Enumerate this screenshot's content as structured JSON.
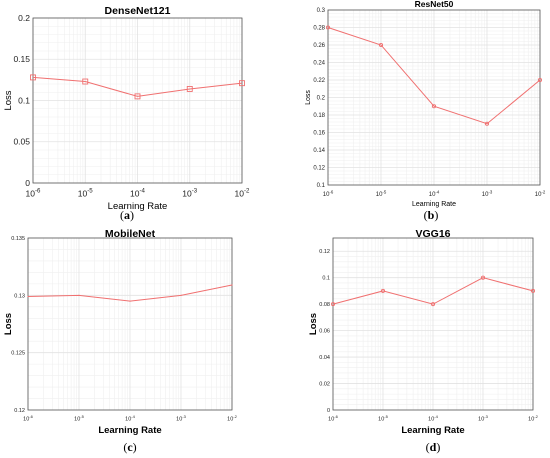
{
  "chart_data": [
    {
      "type": "line",
      "title": "DenseNet121",
      "xlabel": "Learning Rate",
      "ylabel": "Loss",
      "x_tick_labels": [
        "10-6",
        "10-5",
        "10-4",
        "10-3",
        "10-2"
      ],
      "x": [
        1e-06,
        1e-05,
        0.0001,
        0.001,
        0.01
      ],
      "xscale": "log",
      "y": [
        0.128,
        0.123,
        0.105,
        0.114,
        0.121
      ],
      "ylim": [
        0,
        0.2
      ],
      "y_ticks": [
        "0",
        "0.05",
        "0.1",
        "0.15",
        "0.2"
      ],
      "grid": true,
      "marker": "square",
      "caption": "(a)"
    },
    {
      "type": "line",
      "title": "ResNet50",
      "xlabel": "Learning Rate",
      "ylabel": "Loss",
      "x_tick_labels": [
        "10-6",
        "10-5",
        "10-4",
        "10-3",
        "10-2"
      ],
      "x": [
        1e-06,
        1e-05,
        0.0001,
        0.001,
        0.01
      ],
      "xscale": "log",
      "y": [
        0.28,
        0.26,
        0.19,
        0.17,
        0.22
      ],
      "ylim": [
        0.1,
        0.3
      ],
      "y_ticks": [
        "0.1",
        "0.12",
        "0.14",
        "0.16",
        "0.18",
        "0.2",
        "0.22",
        "0.24",
        "0.26",
        "0.28",
        "0.3"
      ],
      "grid": true,
      "marker": "circle",
      "caption": "(b)"
    },
    {
      "type": "line",
      "title": "MobileNet",
      "xlabel": "Learning Rate",
      "ylabel": "Loss",
      "x_tick_labels": [
        "10-6",
        "10-5",
        "10-4",
        "10-3",
        "10-2"
      ],
      "x": [
        1e-06,
        1e-05,
        0.0001,
        0.001,
        0.01
      ],
      "xscale": "log",
      "y": [
        0.1299,
        0.13,
        0.1295,
        0.13,
        0.1309
      ],
      "ylim": [
        0.12,
        0.135
      ],
      "y_ticks": [
        "0.12",
        "0.125",
        "0.13",
        "0.135"
      ],
      "grid": true,
      "marker": "none",
      "caption": "(c)"
    },
    {
      "type": "line",
      "title": "VGG16",
      "xlabel": "Learning Rate",
      "ylabel": "Loss",
      "x_tick_labels": [
        "10-6",
        "10-5",
        "10-4",
        "10-3",
        "10-2"
      ],
      "x": [
        1e-06,
        1e-05,
        0.0001,
        0.001,
        0.01
      ],
      "xscale": "log",
      "y": [
        0.08,
        0.09,
        0.08,
        0.1,
        0.09
      ],
      "ylim": [
        0,
        0.13
      ],
      "y_ticks": [
        "0",
        "0.02",
        "0.04",
        "0.06",
        "0.08",
        "0.1",
        "0.12"
      ],
      "grid": true,
      "marker": "circle",
      "caption": "(d)"
    }
  ],
  "colors": {
    "line": "#f07070",
    "grid": "#e2e2e2",
    "axis": "#555555"
  }
}
